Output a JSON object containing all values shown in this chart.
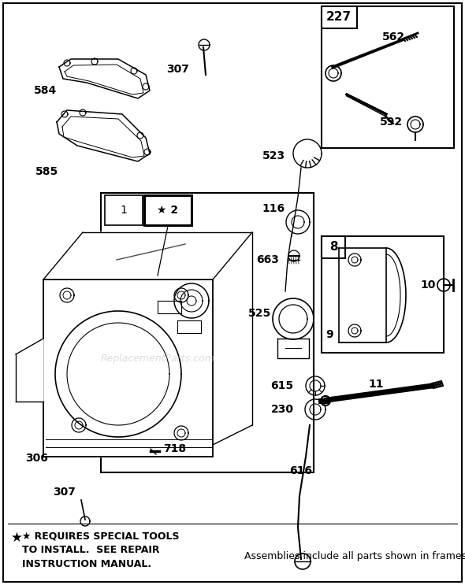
{
  "bg_color": "#ffffff",
  "line_color": "#000000",
  "text_color": "#000000",
  "watermark_text": "ReplacementParts.com",
  "watermark_color": "#bbbbbb",
  "figsize": [
    5.9,
    7.43
  ],
  "dpi": 100,
  "footer_star_line": "★ REQUIRES SPECIAL TOOLS",
  "footer_line2": "TO INSTALL.  SEE REPAIR",
  "footer_line3": "INSTRUCTION MANUAL.",
  "footer_right": "Assemblies include all parts shown in frames."
}
